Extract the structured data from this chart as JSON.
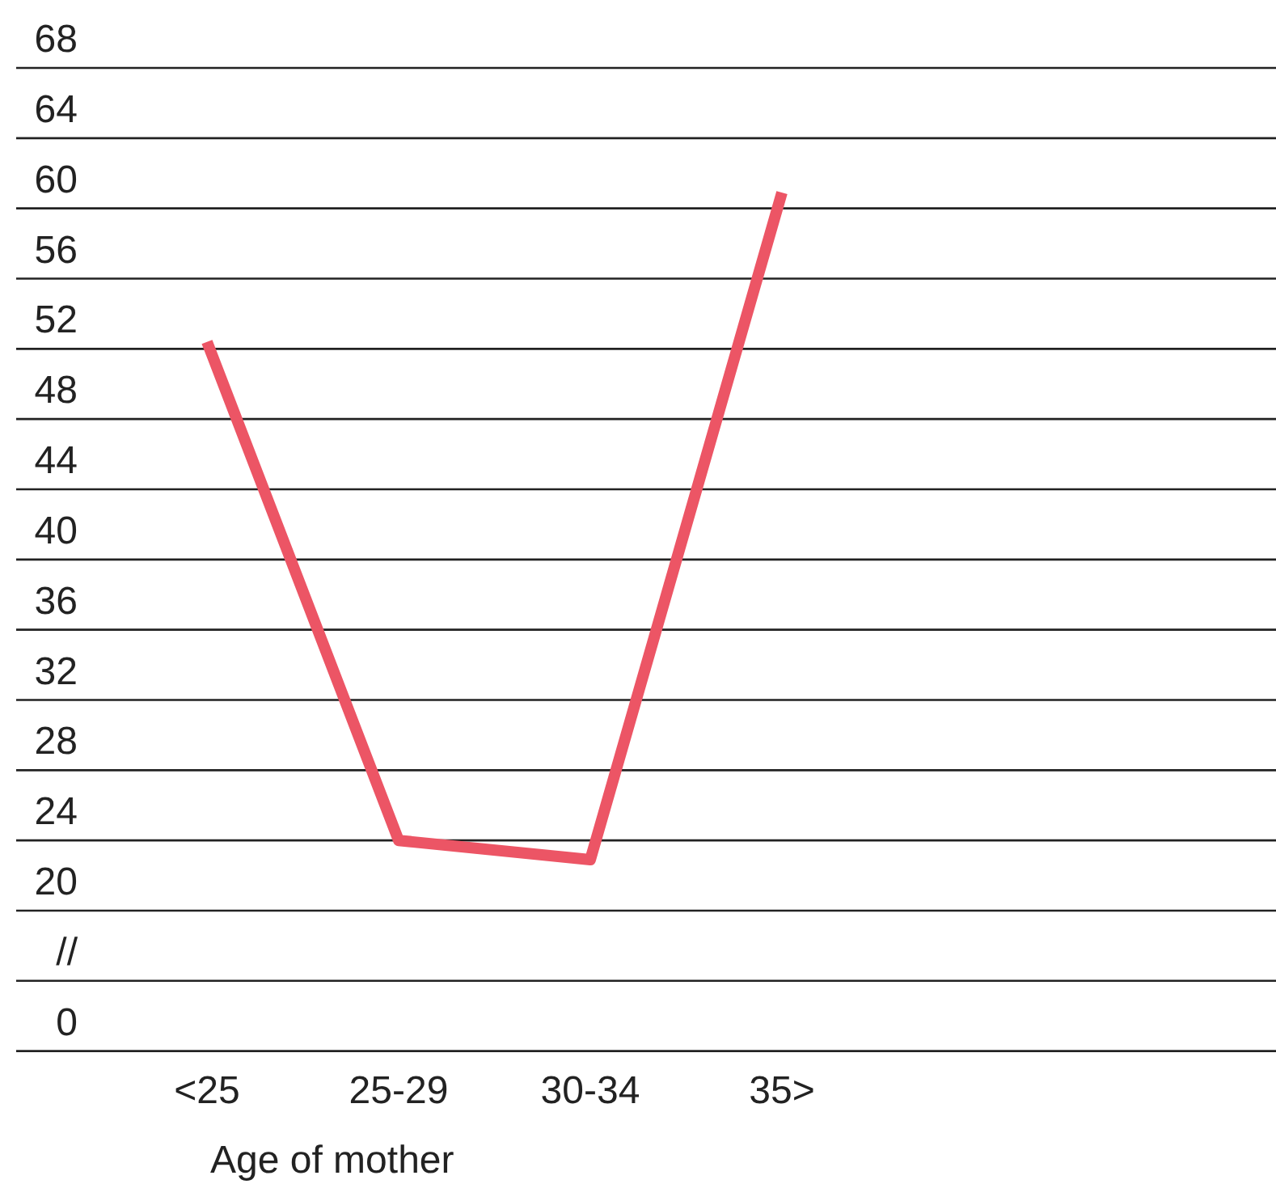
{
  "chart_data": {
    "type": "line",
    "xlabel": "Age of mother",
    "categories": [
      "<25",
      "25-29",
      "30-34",
      "35>"
    ],
    "series": [
      {
        "color": "#ec5565",
        "values": [
          52.4,
          24,
          22.9,
          60.9
        ]
      }
    ],
    "ylim": [
      20,
      68
    ],
    "yticks": [
      20,
      24,
      28,
      32,
      36,
      40,
      44,
      48,
      52,
      56,
      60,
      64,
      68
    ],
    "annotations": [
      "//",
      "0"
    ],
    "grid": "y",
    "marker": "none",
    "line_style": "solid"
  }
}
